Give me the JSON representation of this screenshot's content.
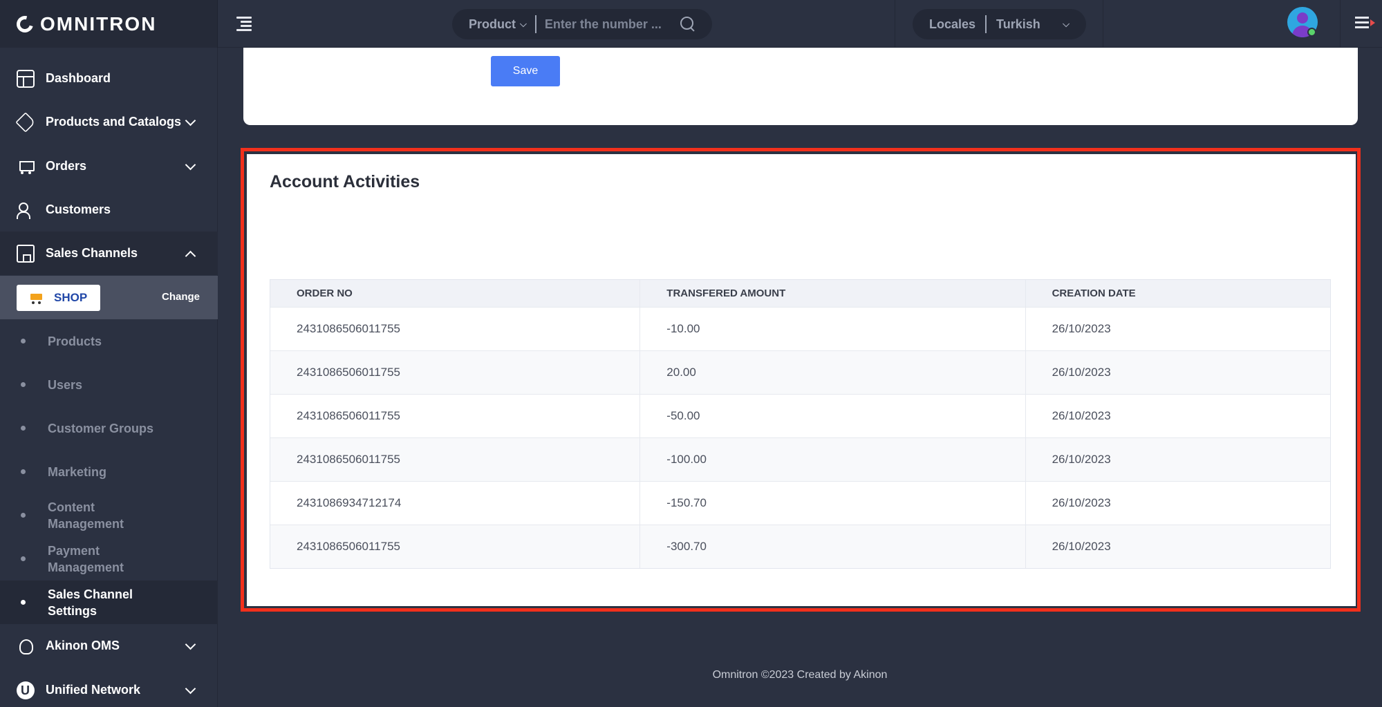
{
  "brand": {
    "name": "OMNITRON"
  },
  "search": {
    "scope": "Product",
    "placeholder": "Enter the number ..."
  },
  "locale": {
    "label": "Locales",
    "value": "Turkish"
  },
  "sidebar": {
    "items": [
      {
        "label": "Dashboard",
        "icon": "dashboard-icon"
      },
      {
        "label": "Products and Catalogs",
        "icon": "tag-icon"
      },
      {
        "label": "Orders",
        "icon": "cart-icon"
      },
      {
        "label": "Customers",
        "icon": "users-icon"
      },
      {
        "label": "Sales Channels",
        "icon": "store-icon"
      },
      {
        "label": "Akinon OMS",
        "icon": "oms-icon"
      },
      {
        "label": "Unified Network",
        "icon": "unified-network-icon"
      }
    ],
    "shop": {
      "label": "SHOP",
      "change": "Change"
    },
    "subitems": [
      {
        "label": "Products"
      },
      {
        "label": "Users"
      },
      {
        "label": "Customer Groups"
      },
      {
        "label": "Marketing"
      },
      {
        "label": "Content\nManagement"
      },
      {
        "label": "Payment\nManagement"
      },
      {
        "label": "Sales Channel\nSettings"
      }
    ]
  },
  "form": {
    "save_label": "Save"
  },
  "activities": {
    "title": "Account Activities",
    "columns": [
      "ORDER NO",
      "TRANSFERED AMOUNT",
      "CREATION DATE"
    ],
    "rows": [
      [
        "2431086506011755",
        "-10.00",
        "26/10/2023"
      ],
      [
        "2431086506011755",
        "20.00",
        "26/10/2023"
      ],
      [
        "2431086506011755",
        "-50.00",
        "26/10/2023"
      ],
      [
        "2431086506011755",
        "-100.00",
        "26/10/2023"
      ],
      [
        "2431086934712174",
        "-150.70",
        "26/10/2023"
      ],
      [
        "2431086506011755",
        "-300.70",
        "26/10/2023"
      ]
    ]
  },
  "footer": {
    "text": "Omnitron ©2023 Created by Akinon"
  },
  "colors": {
    "accent": "#4a7cf5",
    "highlight": "#f2301c",
    "sidebar_bg": "#2b3141"
  }
}
